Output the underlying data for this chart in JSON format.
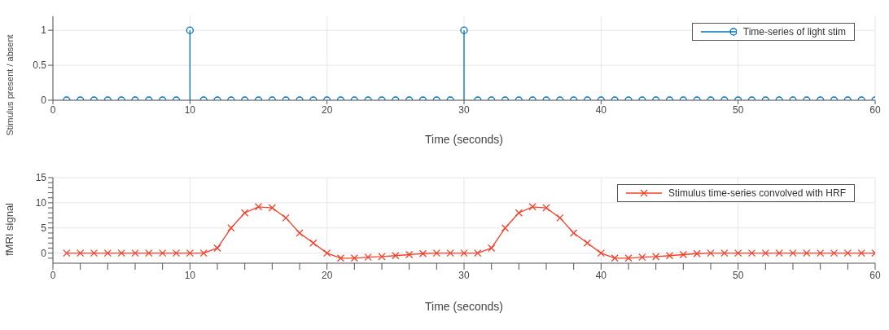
{
  "chart_data": [
    {
      "type": "lollipop",
      "xlabel": "Time (seconds)",
      "ylabel": "Stimulus present / absent",
      "x": [
        1,
        2,
        3,
        4,
        5,
        6,
        7,
        8,
        9,
        10,
        11,
        12,
        13,
        14,
        15,
        16,
        17,
        18,
        19,
        20,
        21,
        22,
        23,
        24,
        25,
        26,
        27,
        28,
        29,
        30,
        31,
        32,
        33,
        34,
        35,
        36,
        37,
        38,
        39,
        40,
        41,
        42,
        43,
        44,
        45,
        46,
        47,
        48,
        49,
        50,
        51,
        52,
        53,
        54,
        55,
        56,
        57,
        58,
        59,
        60
      ],
      "series": [
        {
          "name": "Time-series of light stim",
          "color": "#0072bd",
          "values": [
            0,
            0,
            0,
            0,
            0,
            0,
            0,
            0,
            0,
            1,
            0,
            0,
            0,
            0,
            0,
            0,
            0,
            0,
            0,
            0,
            0,
            0,
            0,
            0,
            0,
            0,
            0,
            0,
            0,
            1,
            0,
            0,
            0,
            0,
            0,
            0,
            0,
            0,
            0,
            0,
            0,
            0,
            0,
            0,
            0,
            0,
            0,
            0,
            0,
            0,
            0,
            0,
            0,
            0,
            0,
            0,
            0,
            0,
            0,
            0
          ]
        }
      ],
      "xlim": [
        0,
        60
      ],
      "xticks": [
        0,
        10,
        20,
        30,
        40,
        50,
        60
      ],
      "ylim": [
        0,
        1.2
      ],
      "yticks": [
        0,
        0.5,
        1
      ],
      "grid": true,
      "legend": "top right",
      "marker": "circle",
      "line_style": "solid"
    },
    {
      "type": "line",
      "xlabel": "Time (seconds)",
      "ylabel": "fMRI signal",
      "x": [
        1,
        2,
        3,
        4,
        5,
        6,
        7,
        8,
        9,
        10,
        11,
        12,
        13,
        14,
        15,
        16,
        17,
        18,
        19,
        20,
        21,
        22,
        23,
        24,
        25,
        26,
        27,
        28,
        29,
        30,
        31,
        32,
        33,
        34,
        35,
        36,
        37,
        38,
        39,
        40,
        41,
        42,
        43,
        44,
        45,
        46,
        47,
        48,
        49,
        50,
        51,
        52,
        53,
        54,
        55,
        56,
        57,
        58,
        59,
        60
      ],
      "series": [
        {
          "name": "Stimulus time-series convolved with HRF",
          "color": "#f5402a",
          "values": [
            0,
            0,
            0,
            0,
            0,
            0,
            0,
            0,
            0,
            0,
            0,
            1,
            5,
            8,
            9.2,
            9,
            7,
            4,
            2,
            0,
            -1,
            -1,
            -0.8,
            -0.7,
            -0.5,
            -0.3,
            -0.1,
            0,
            0,
            0,
            0,
            1,
            5,
            8,
            9.2,
            9,
            7,
            4,
            2,
            0,
            -1,
            -1,
            -0.8,
            -0.7,
            -0.5,
            -0.3,
            -0.1,
            0,
            0,
            0,
            0,
            0,
            0,
            0,
            0,
            0,
            0,
            0,
            0,
            0
          ]
        }
      ],
      "xlim": [
        0,
        60
      ],
      "xticks": [
        0,
        {
          "value": 2,
          "label": null
        },
        {
          "value": 4,
          "label": null
        },
        {
          "value": 6,
          "label": null
        },
        {
          "value": 8,
          "label": null
        },
        10,
        {
          "value": 12,
          "label": null
        },
        {
          "value": 14,
          "label": null
        },
        {
          "value": 16,
          "label": null
        },
        {
          "value": 18,
          "label": null
        },
        20,
        {
          "value": 22,
          "label": null
        },
        {
          "value": 24,
          "label": null
        },
        {
          "value": 26,
          "label": null
        },
        {
          "value": 28,
          "label": null
        },
        30,
        {
          "value": 32,
          "label": null
        },
        {
          "value": 34,
          "label": null
        },
        {
          "value": 36,
          "label": null
        },
        {
          "value": 38,
          "label": null
        },
        40,
        {
          "value": 42,
          "label": null
        },
        {
          "value": 44,
          "label": null
        },
        {
          "value": 46,
          "label": null
        },
        {
          "value": 48,
          "label": null
        },
        50,
        {
          "value": 52,
          "label": null
        },
        {
          "value": 54,
          "label": null
        },
        {
          "value": 56,
          "label": null
        },
        {
          "value": 58,
          "label": null
        },
        60
      ],
      "ylim": [
        -2,
        15
      ],
      "yticks": [
        {
          "value": -1,
          "label": null
        },
        0,
        {
          "value": 1,
          "label": null
        },
        {
          "value": 2,
          "label": null
        },
        {
          "value": 3,
          "label": null
        },
        {
          "value": 4,
          "label": null
        },
        5,
        {
          "value": 6,
          "label": null
        },
        {
          "value": 7,
          "label": null
        },
        {
          "value": 8,
          "label": null
        },
        {
          "value": 9,
          "label": null
        },
        10,
        {
          "value": 11,
          "label": null
        },
        {
          "value": 12,
          "label": null
        },
        {
          "value": 13,
          "label": null
        },
        {
          "value": 14,
          "label": null
        },
        15
      ],
      "grid": true,
      "legend": "top right",
      "marker": "cross",
      "line_style": "solid"
    }
  ]
}
